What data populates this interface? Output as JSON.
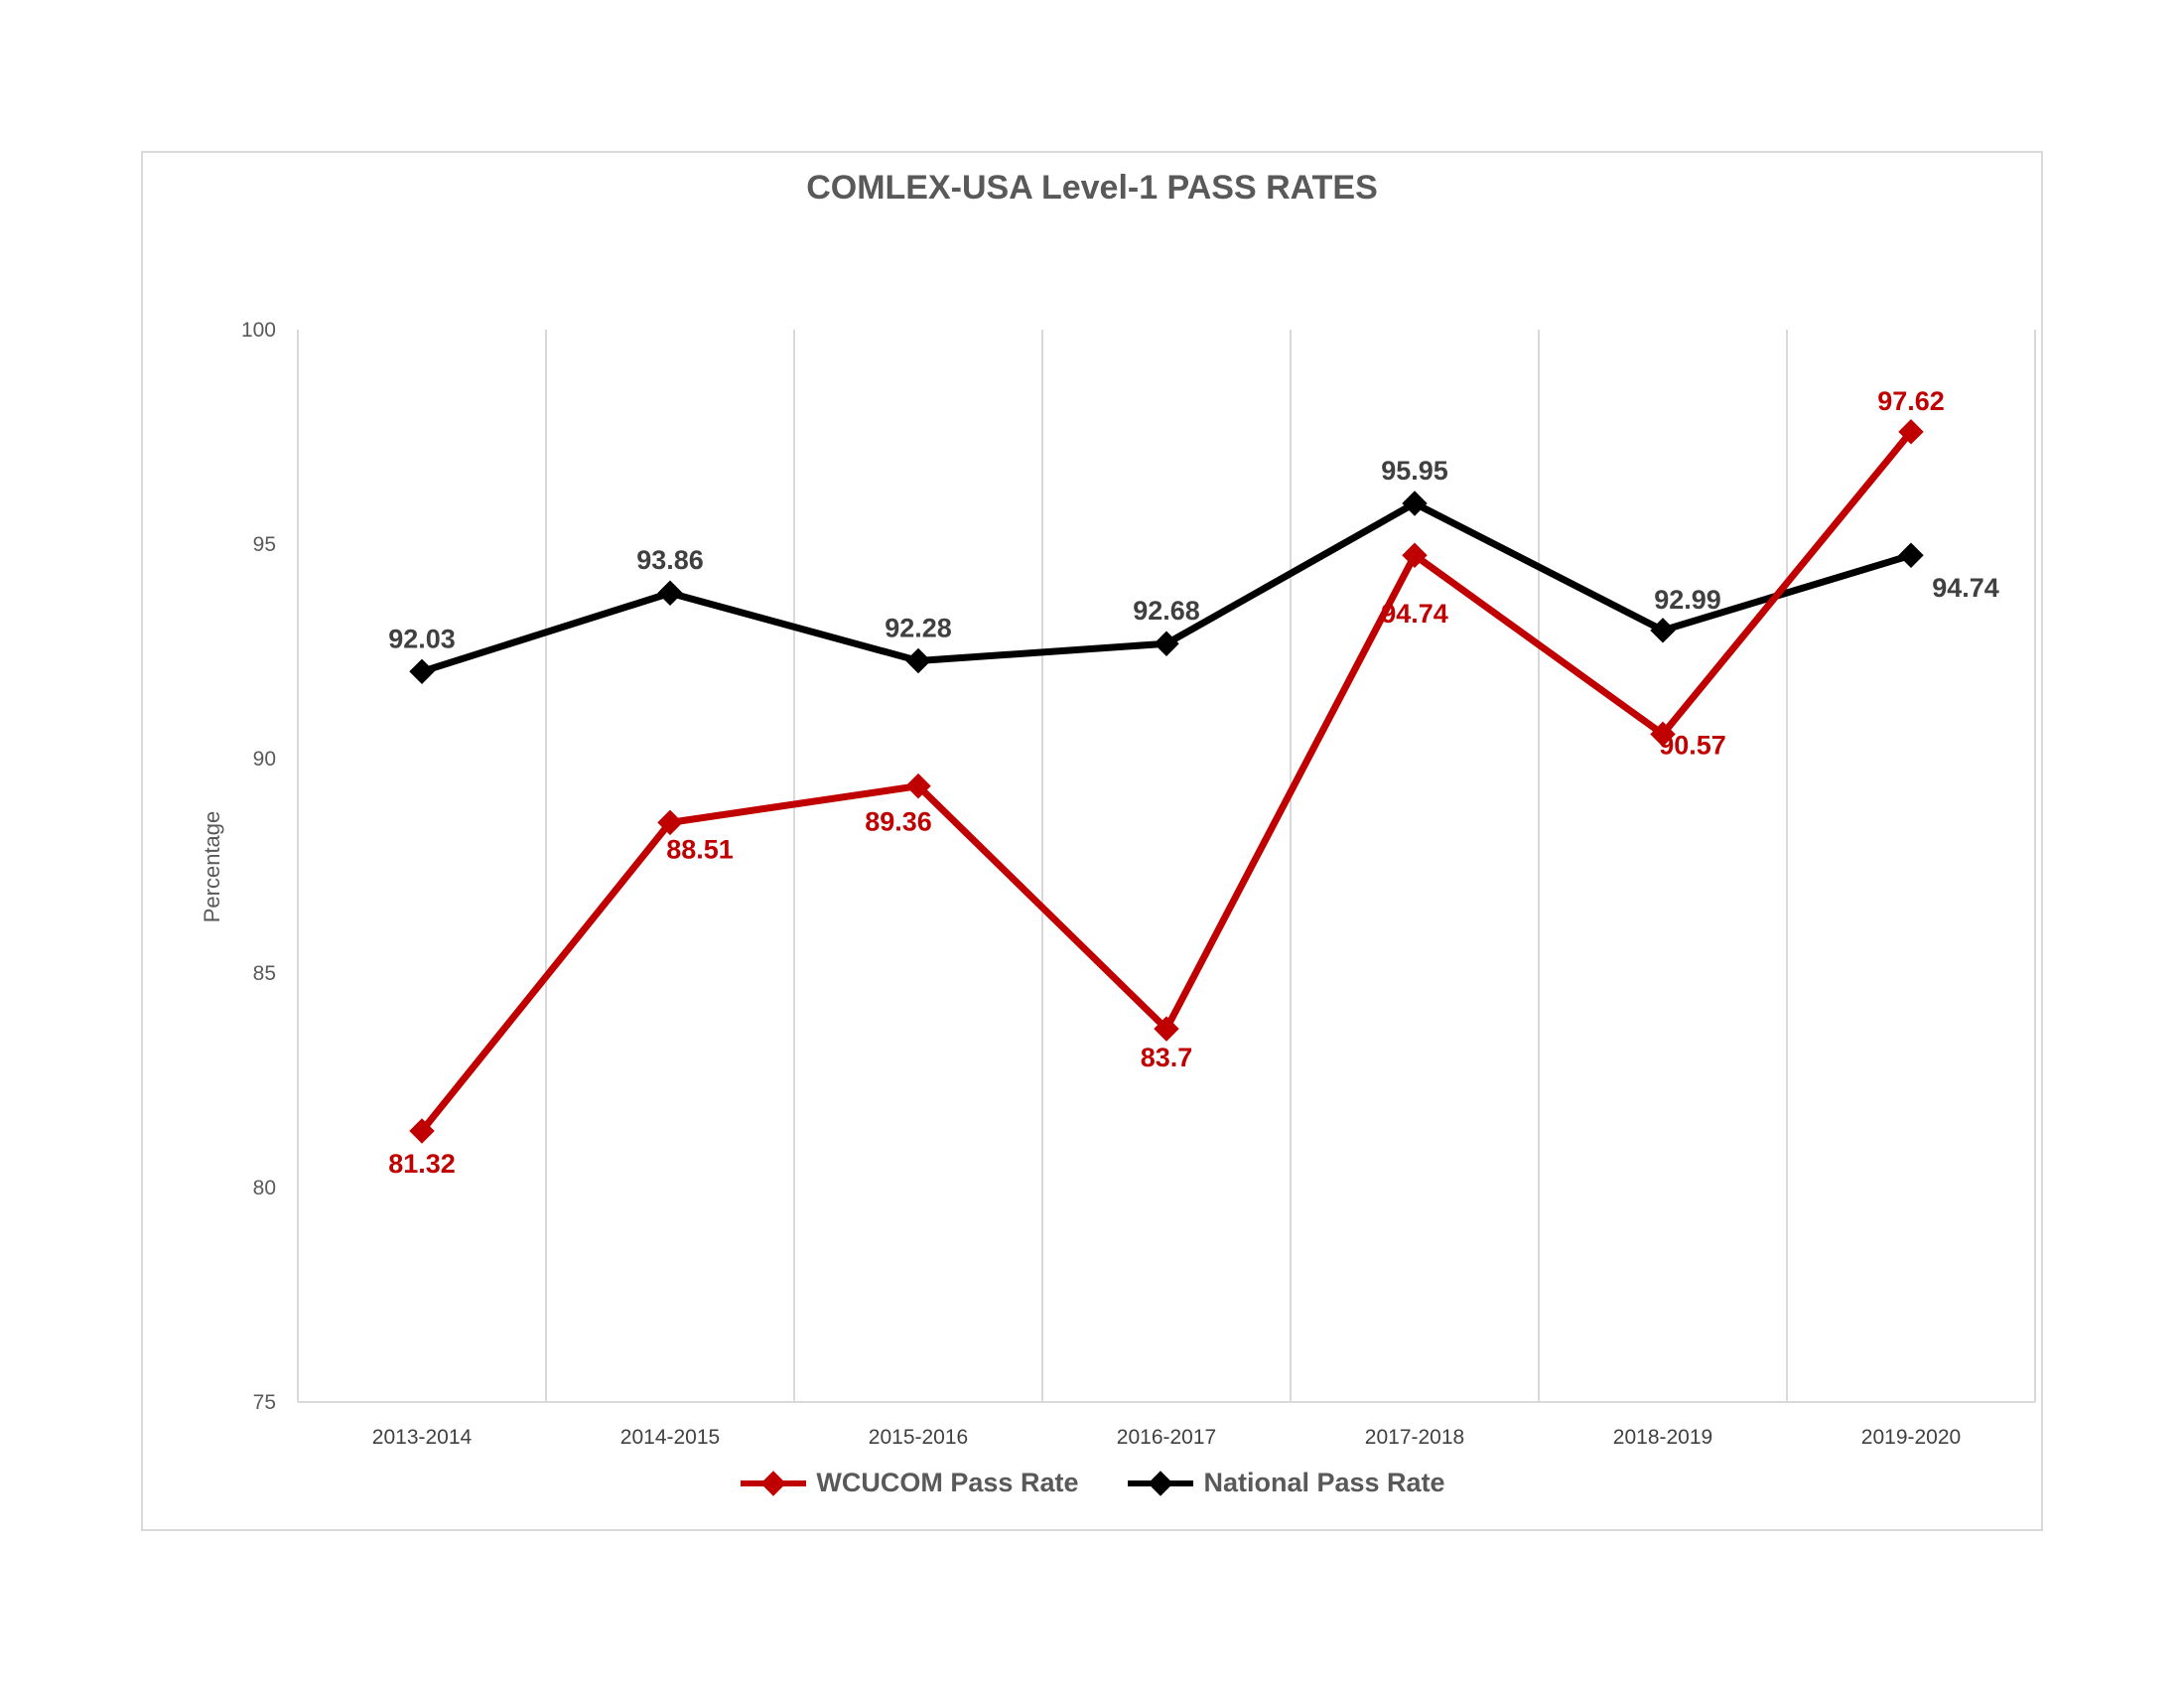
{
  "chart_data": {
    "type": "line",
    "title": "COMLEX-USA Level-1  PASS RATES",
    "xlabel": "",
    "ylabel": "Percentage",
    "ylim": [
      75,
      100
    ],
    "yticks": [
      75,
      80,
      85,
      90,
      95,
      100
    ],
    "grid": "vertical",
    "legend": "bottom",
    "categories": [
      "2013-2014",
      "2014-2015",
      "2015-2016",
      "2016-2017",
      "2017-2018",
      "2018-2019",
      "2019-2020"
    ],
    "series": [
      {
        "name": "WCUCOM Pass Rate",
        "color": "#c00000",
        "values": [
          81.32,
          88.51,
          89.36,
          83.7,
          94.74,
          90.57,
          97.62
        ],
        "labels": [
          "81.32",
          "88.51",
          "89.36",
          "83.7",
          "94.74",
          "90.57",
          "97.62"
        ]
      },
      {
        "name": "National Pass Rate",
        "color": "#000000",
        "label_color": "#404040",
        "values": [
          92.03,
          93.86,
          92.28,
          92.68,
          95.95,
          92.99,
          94.74
        ],
        "labels": [
          "92.03",
          "93.86",
          "92.28",
          "92.68",
          "95.95",
          "92.99",
          "94.74"
        ]
      }
    ]
  }
}
